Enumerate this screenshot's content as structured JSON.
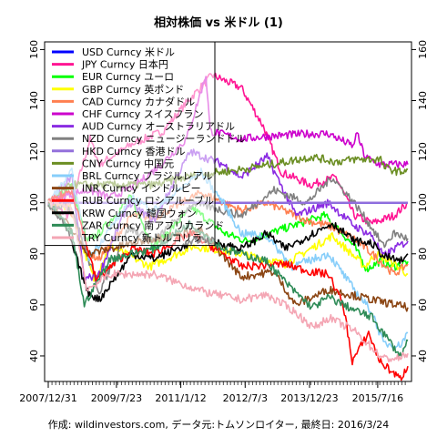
{
  "chart_data": {
    "type": "line",
    "title": "相対株価 vs 米ドル (1)",
    "footer": "作成: wildinvestors.com, データ元:トムソンロイター, 最終日: 2016/3/24",
    "ylim": [
      30,
      163
    ],
    "x_range": [
      "2007-12-31",
      "2016-03-24"
    ],
    "y_ticks": [
      40,
      60,
      80,
      100,
      120,
      140,
      160
    ],
    "x_tick_labels": [
      {
        "date": "2007-12-31",
        "label": "2007/12/31"
      },
      {
        "date": "2009-07-23",
        "label": "2009/7/23"
      },
      {
        "date": "2011-01-12",
        "label": "2011/1/12"
      },
      {
        "date": "2012-07-03",
        "label": "2012/7/3"
      },
      {
        "date": "2013-12-23",
        "label": "2013/12/23"
      },
      {
        "date": "2015-07-16",
        "label": "2015/7/16"
      }
    ],
    "legend_position": "top-left",
    "grid": false,
    "series": [
      {
        "name": "USD Curncy 米ドル",
        "color": "#0000ff",
        "points": [
          [
            "2007-12-31",
            100
          ],
          [
            "2011-06-01",
            100
          ],
          [
            "2013-01-01",
            100
          ],
          [
            "2016-03-24",
            100
          ]
        ]
      },
      {
        "name": "JPY Curncy 日本円",
        "color": "#ff1493",
        "points": [
          [
            "2007-12-31",
            100
          ],
          [
            "2008-06-15",
            95
          ],
          [
            "2008-12-15",
            125
          ],
          [
            "2009-03-01",
            115
          ],
          [
            "2009-12-01",
            123
          ],
          [
            "2010-08-15",
            128
          ],
          [
            "2011-03-15",
            140
          ],
          [
            "2011-10-01",
            150
          ],
          [
            "2012-06-01",
            145
          ],
          [
            "2012-12-01",
            130
          ],
          [
            "2013-05-01",
            112
          ],
          [
            "2013-12-31",
            107
          ],
          [
            "2014-08-01",
            110
          ],
          [
            "2015-01-01",
            95
          ],
          [
            "2015-06-01",
            92
          ],
          [
            "2015-12-01",
            95
          ],
          [
            "2016-03-24",
            100
          ]
        ]
      },
      {
        "name": "EUR Curncy ユーロ",
        "color": "#00ff00",
        "points": [
          [
            "2007-12-31",
            100
          ],
          [
            "2008-07-15",
            107
          ],
          [
            "2008-11-15",
            85
          ],
          [
            "2009-03-01",
            88
          ],
          [
            "2009-11-15",
            102
          ],
          [
            "2010-06-01",
            83
          ],
          [
            "2011-04-15",
            98
          ],
          [
            "2012-01-15",
            88
          ],
          [
            "2012-07-15",
            85
          ],
          [
            "2013-06-01",
            90
          ],
          [
            "2014-05-01",
            95
          ],
          [
            "2014-12-31",
            83
          ],
          [
            "2015-04-15",
            74
          ],
          [
            "2015-08-01",
            77
          ],
          [
            "2015-12-01",
            75
          ],
          [
            "2016-03-24",
            77
          ]
        ]
      },
      {
        "name": "GBP Curncy 英ポンド",
        "color": "#ffff00",
        "points": [
          [
            "2007-12-31",
            100
          ],
          [
            "2008-07-01",
            98
          ],
          [
            "2009-01-15",
            70
          ],
          [
            "2009-06-01",
            83
          ],
          [
            "2010-05-01",
            75
          ],
          [
            "2011-05-01",
            83
          ],
          [
            "2012-06-01",
            80
          ],
          [
            "2013-06-01",
            76
          ],
          [
            "2014-07-01",
            87
          ],
          [
            "2015-04-01",
            75
          ],
          [
            "2015-07-01",
            80
          ],
          [
            "2015-12-01",
            76
          ],
          [
            "2016-03-24",
            72
          ]
        ]
      },
      {
        "name": "CAD Curncy カナダドル",
        "color": "#ff7f50",
        "points": [
          [
            "2007-12-31",
            100
          ],
          [
            "2008-06-01",
            100
          ],
          [
            "2008-12-01",
            80
          ],
          [
            "2009-03-01",
            78
          ],
          [
            "2009-12-01",
            95
          ],
          [
            "2010-06-01",
            94
          ],
          [
            "2011-07-01",
            104
          ],
          [
            "2012-06-01",
            97
          ],
          [
            "2013-01-01",
            100
          ],
          [
            "2013-12-01",
            93
          ],
          [
            "2014-06-01",
            91
          ],
          [
            "2014-12-31",
            86
          ],
          [
            "2015-06-01",
            80
          ],
          [
            "2015-12-01",
            72
          ],
          [
            "2016-03-24",
            76
          ]
        ]
      },
      {
        "name": "CHF Curncy スイスフラン",
        "color": "#cc00cc",
        "points": [
          [
            "2007-12-31",
            100
          ],
          [
            "2008-06-01",
            103
          ],
          [
            "2008-12-01",
            105
          ],
          [
            "2009-06-01",
            102
          ],
          [
            "2010-01-01",
            107
          ],
          [
            "2010-08-01",
            115
          ],
          [
            "2011-03-01",
            125
          ],
          [
            "2011-08-10",
            150
          ],
          [
            "2011-09-15",
            128
          ],
          [
            "2012-06-01",
            125
          ],
          [
            "2013-01-01",
            126
          ],
          [
            "2013-12-01",
            127
          ],
          [
            "2014-06-01",
            127
          ],
          [
            "2014-12-31",
            122
          ],
          [
            "2015-01-15",
            128
          ],
          [
            "2015-04-01",
            118
          ],
          [
            "2015-08-01",
            115
          ],
          [
            "2016-03-24",
            115
          ]
        ]
      },
      {
        "name": "AUD Curncy オーストラリアドル",
        "color": "#8a2be2",
        "points": [
          [
            "2007-12-31",
            100
          ],
          [
            "2008-07-15",
            110
          ],
          [
            "2008-10-27",
            70
          ],
          [
            "2009-03-01",
            72
          ],
          [
            "2009-11-01",
            100
          ],
          [
            "2010-06-01",
            93
          ],
          [
            "2011-04-01",
            120
          ],
          [
            "2012-01-01",
            115
          ],
          [
            "2012-06-01",
            110
          ],
          [
            "2013-01-01",
            118
          ],
          [
            "2013-09-01",
            95
          ],
          [
            "2014-06-01",
            100
          ],
          [
            "2014-12-31",
            91
          ],
          [
            "2015-06-01",
            87
          ],
          [
            "2015-09-01",
            79
          ],
          [
            "2015-12-01",
            82
          ],
          [
            "2016-03-24",
            85
          ]
        ]
      },
      {
        "name": "NZD Curncy ニュージーランドドル",
        "color": "#808080",
        "points": [
          [
            "2007-12-31",
            100
          ],
          [
            "2008-07-15",
            98
          ],
          [
            "2009-03-01",
            65
          ],
          [
            "2009-11-01",
            90
          ],
          [
            "2010-06-01",
            85
          ],
          [
            "2011-05-01",
            100
          ],
          [
            "2012-06-01",
            95
          ],
          [
            "2013-03-01",
            105
          ],
          [
            "2013-12-01",
            100
          ],
          [
            "2014-07-01",
            110
          ],
          [
            "2014-12-31",
            100
          ],
          [
            "2015-06-01",
            90
          ],
          [
            "2015-09-01",
            83
          ],
          [
            "2015-12-01",
            88
          ],
          [
            "2016-03-24",
            86
          ]
        ]
      },
      {
        "name": "HKD Curncy 香港ドル",
        "color": "#9370db",
        "points": [
          [
            "2007-12-31",
            100
          ],
          [
            "2009-01-01",
            100
          ],
          [
            "2011-01-01",
            100
          ],
          [
            "2013-01-01",
            100
          ],
          [
            "2016-03-24",
            100
          ]
        ]
      },
      {
        "name": "CNY Curncy 中国元",
        "color": "#6b8e23",
        "points": [
          [
            "2007-12-31",
            100
          ],
          [
            "2008-07-15",
            107
          ],
          [
            "2009-12-01",
            107
          ],
          [
            "2010-06-01",
            107
          ],
          [
            "2011-06-01",
            111
          ],
          [
            "2012-06-01",
            113
          ],
          [
            "2013-06-01",
            116
          ],
          [
            "2014-01-15",
            118
          ],
          [
            "2014-08-01",
            116
          ],
          [
            "2015-01-01",
            117
          ],
          [
            "2015-08-10",
            117
          ],
          [
            "2015-09-01",
            114
          ],
          [
            "2016-01-15",
            112
          ],
          [
            "2016-03-24",
            113
          ]
        ]
      },
      {
        "name": "BRL Curncy ブラジルレアル",
        "color": "#87cefa",
        "points": [
          [
            "2007-12-31",
            100
          ],
          [
            "2008-07-15",
            112
          ],
          [
            "2008-12-01",
            78
          ],
          [
            "2009-06-01",
            90
          ],
          [
            "2009-12-01",
            102
          ],
          [
            "2010-06-01",
            97
          ],
          [
            "2011-07-01",
            112
          ],
          [
            "2012-01-01",
            100
          ],
          [
            "2012-06-01",
            88
          ],
          [
            "2013-01-01",
            87
          ],
          [
            "2013-08-01",
            75
          ],
          [
            "2014-06-01",
            80
          ],
          [
            "2014-12-31",
            66
          ],
          [
            "2015-06-01",
            57
          ],
          [
            "2015-09-01",
            45
          ],
          [
            "2016-01-15",
            44
          ],
          [
            "2016-03-24",
            49
          ]
        ]
      },
      {
        "name": "INR Curncy インドルピー",
        "color": "#8b4513",
        "points": [
          [
            "2007-12-31",
            100
          ],
          [
            "2008-06-01",
            92
          ],
          [
            "2008-12-01",
            80
          ],
          [
            "2009-06-01",
            82
          ],
          [
            "2010-06-01",
            86
          ],
          [
            "2011-07-01",
            89
          ],
          [
            "2012-06-01",
            71
          ],
          [
            "2013-03-01",
            73
          ],
          [
            "2013-08-28",
            60
          ],
          [
            "2014-06-01",
            66
          ],
          [
            "2015-06-01",
            62
          ],
          [
            "2016-03-24",
            59
          ]
        ]
      },
      {
        "name": "RUB Curncy ロシアルーブル",
        "color": "#ff0000",
        "points": [
          [
            "2007-12-31",
            100
          ],
          [
            "2008-07-15",
            105
          ],
          [
            "2009-02-01",
            70
          ],
          [
            "2009-12-01",
            82
          ],
          [
            "2010-06-01",
            80
          ],
          [
            "2011-04-01",
            88
          ],
          [
            "2012-01-01",
            80
          ],
          [
            "2012-06-01",
            75
          ],
          [
            "2013-06-01",
            76
          ],
          [
            "2014-01-01",
            73
          ],
          [
            "2014-06-01",
            72
          ],
          [
            "2014-10-01",
            60
          ],
          [
            "2014-12-16",
            38
          ],
          [
            "2015-05-01",
            49
          ],
          [
            "2015-08-01",
            38
          ],
          [
            "2016-01-20",
            31
          ],
          [
            "2016-03-24",
            36
          ]
        ]
      },
      {
        "name": "KRW Curncy 韓国ウォン",
        "color": "#000000",
        "points": [
          [
            "2007-12-31",
            100
          ],
          [
            "2008-06-01",
            90
          ],
          [
            "2008-11-24",
            65
          ],
          [
            "2009-03-01",
            62
          ],
          [
            "2009-12-01",
            80
          ],
          [
            "2010-06-01",
            78
          ],
          [
            "2011-07-01",
            86
          ],
          [
            "2012-06-01",
            82
          ],
          [
            "2013-01-01",
            88
          ],
          [
            "2013-06-01",
            82
          ],
          [
            "2014-07-01",
            92
          ],
          [
            "2014-12-31",
            85
          ],
          [
            "2015-06-01",
            84
          ],
          [
            "2015-09-01",
            79
          ],
          [
            "2016-02-15",
            77
          ],
          [
            "2016-03-24",
            80
          ]
        ]
      },
      {
        "name": "ZAR Curncy 南アフリカランド",
        "color": "#2e8b57",
        "points": [
          [
            "2007-12-31",
            100
          ],
          [
            "2008-07-15",
            88
          ],
          [
            "2008-10-27",
            60
          ],
          [
            "2009-06-01",
            78
          ],
          [
            "2010-06-01",
            82
          ],
          [
            "2011-04-01",
            92
          ],
          [
            "2012-01-01",
            82
          ],
          [
            "2012-06-01",
            80
          ],
          [
            "2013-01-01",
            77
          ],
          [
            "2013-08-01",
            66
          ],
          [
            "2014-01-15",
            59
          ],
          [
            "2014-06-01",
            63
          ],
          [
            "2014-12-31",
            58
          ],
          [
            "2015-06-01",
            55
          ],
          [
            "2015-09-01",
            49
          ],
          [
            "2016-01-20",
            40
          ],
          [
            "2016-03-24",
            46
          ]
        ]
      },
      {
        "name": "TRY Curncy 新トルコリラ",
        "color": "#f4a6b4",
        "points": [
          [
            "2007-12-31",
            100
          ],
          [
            "2008-07-15",
            98
          ],
          [
            "2008-11-20",
            66
          ],
          [
            "2009-06-01",
            72
          ],
          [
            "2010-06-01",
            72
          ],
          [
            "2011-08-01",
            65
          ],
          [
            "2012-06-01",
            62
          ],
          [
            "2013-01-01",
            64
          ],
          [
            "2013-08-01",
            58
          ],
          [
            "2014-01-27",
            51
          ],
          [
            "2014-06-01",
            55
          ],
          [
            "2014-12-31",
            50
          ],
          [
            "2015-06-01",
            43
          ],
          [
            "2015-09-01",
            39
          ],
          [
            "2016-01-15",
            39
          ],
          [
            "2016-03-24",
            41
          ]
        ]
      }
    ]
  }
}
